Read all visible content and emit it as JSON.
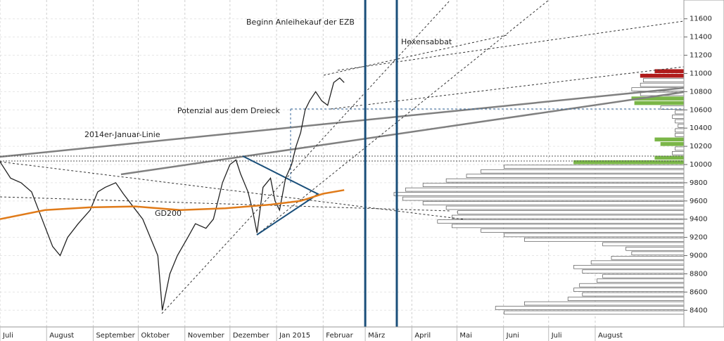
{
  "chart_data": {
    "type": "line",
    "xlim": [
      0,
      455
    ],
    "xticks": [
      {
        "value": 0,
        "label": "Juli"
      },
      {
        "value": 31,
        "label": "August"
      },
      {
        "value": 62,
        "label": "September"
      },
      {
        "value": 92,
        "label": "Oktober"
      },
      {
        "value": 123,
        "label": "November"
      },
      {
        "value": 153,
        "label": "Dezember"
      },
      {
        "value": 184,
        "label": "Jan 2015"
      },
      {
        "value": 215,
        "label": "Februar"
      },
      {
        "value": 243,
        "label": "März"
      },
      {
        "value": 274,
        "label": "April"
      },
      {
        "value": 304,
        "label": "Mai"
      },
      {
        "value": 335,
        "label": "Juni"
      },
      {
        "value": 365,
        "label": "Juli"
      },
      {
        "value": 396,
        "label": "August"
      }
    ],
    "ylim": [
      8240,
      11760
    ],
    "yticks": [
      8400,
      8600,
      8800,
      9000,
      9200,
      9400,
      9600,
      9800,
      10000,
      10200,
      10400,
      10600,
      10800,
      11000,
      11200,
      11400,
      11600
    ],
    "grid": true,
    "series": [
      {
        "color": "#222222",
        "x": [
          0,
          7,
          14,
          21,
          28,
          35,
          40,
          45,
          52,
          60,
          65,
          70,
          77,
          82,
          88,
          95,
          100,
          105,
          108,
          113,
          118,
          125,
          130,
          137,
          142,
          148,
          153,
          157,
          160,
          165,
          168,
          171,
          175,
          180,
          183,
          186,
          190,
          194,
          197,
          200,
          203,
          206,
          210,
          214,
          218,
          222,
          226,
          229
        ],
        "values": [
          10030,
          9850,
          9800,
          9700,
          9400,
          9100,
          9000,
          9200,
          9350,
          9500,
          9700,
          9750,
          9800,
          9680,
          9550,
          9400,
          9200,
          9000,
          8400,
          8800,
          9000,
          9200,
          9350,
          9300,
          9400,
          9800,
          10000,
          10050,
          9900,
          9700,
          9500,
          9250,
          9750,
          9850,
          9600,
          9500,
          9850,
          10000,
          10200,
          10350,
          10600,
          10700,
          10800,
          10700,
          10650,
          10900,
          10950,
          10900
        ]
      },
      {
        "name": "GD200",
        "color": "#e07b1a",
        "x": [
          0,
          30,
          60,
          90,
          120,
          150,
          180,
          200,
          215,
          229
        ],
        "values": [
          9400,
          9500,
          9530,
          9540,
          9500,
          9520,
          9560,
          9600,
          9680,
          9720
        ]
      }
    ],
    "annotations": [
      {
        "text": "Beginn Anleihekauf der EZB",
        "x": 243
      },
      {
        "text": "Hexensabbat",
        "x": 264
      },
      {
        "text": "Potenzial aus dem Dreieck"
      },
      {
        "text": "2014er-Januar-Linie"
      }
    ],
    "volume_profile": {
      "levels": [
        8350,
        8400,
        8450,
        8500,
        8550,
        8600,
        8650,
        8700,
        8750,
        8800,
        8850,
        8900,
        8950,
        9000,
        9050,
        9100,
        9150,
        9200,
        9250,
        9300,
        9350,
        9400,
        9450,
        9500,
        9550,
        9600,
        9650,
        9700,
        9750,
        9800,
        9850,
        9900,
        9950,
        10000,
        10050,
        10100,
        10150,
        10200,
        10250,
        10300,
        10350,
        10400,
        10450,
        10500,
        10550,
        10600,
        10650,
        10700,
        10750,
        10800,
        10850,
        10900,
        10950,
        11000
      ],
      "values": [
        62,
        65,
        55,
        40,
        35,
        38,
        36,
        30,
        28,
        35,
        38,
        32,
        25,
        18,
        20,
        28,
        55,
        62,
        70,
        80,
        85,
        80,
        78,
        82,
        90,
        97,
        100,
        96,
        90,
        82,
        75,
        70,
        62,
        38,
        10,
        4,
        3,
        8,
        10,
        3,
        3,
        2,
        3,
        4,
        3,
        8,
        17,
        18,
        15,
        18,
        15,
        14,
        15,
        10
      ],
      "colors": [
        "#ffffff",
        "#ffffff",
        "#ffffff",
        "#ffffff",
        "#ffffff",
        "#ffffff",
        "#ffffff",
        "#ffffff",
        "#ffffff",
        "#ffffff",
        "#ffffff",
        "#ffffff",
        "#ffffff",
        "#ffffff",
        "#ffffff",
        "#ffffff",
        "#ffffff",
        "#ffffff",
        "#ffffff",
        "#ffffff",
        "#ffffff",
        "#ffffff",
        "#ffffff",
        "#ffffff",
        "#ffffff",
        "#ffffff",
        "#ffffff",
        "#ffffff",
        "#ffffff",
        "#ffffff",
        "#ffffff",
        "#ffffff",
        "#ffffff",
        "#7ab648",
        "#7ab648",
        "#ffffff",
        "#ffffff",
        "#7ab648",
        "#7ab648",
        "#ffffff",
        "#ffffff",
        "#ffffff",
        "#ffffff",
        "#ffffff",
        "#ffffff",
        "#ffffff",
        "#7ab648",
        "#7ab648",
        "#ffffff",
        "#ffffff",
        "#ffffff",
        "#ffffff",
        "#b01c1c",
        "#b01c1c"
      ]
    }
  }
}
